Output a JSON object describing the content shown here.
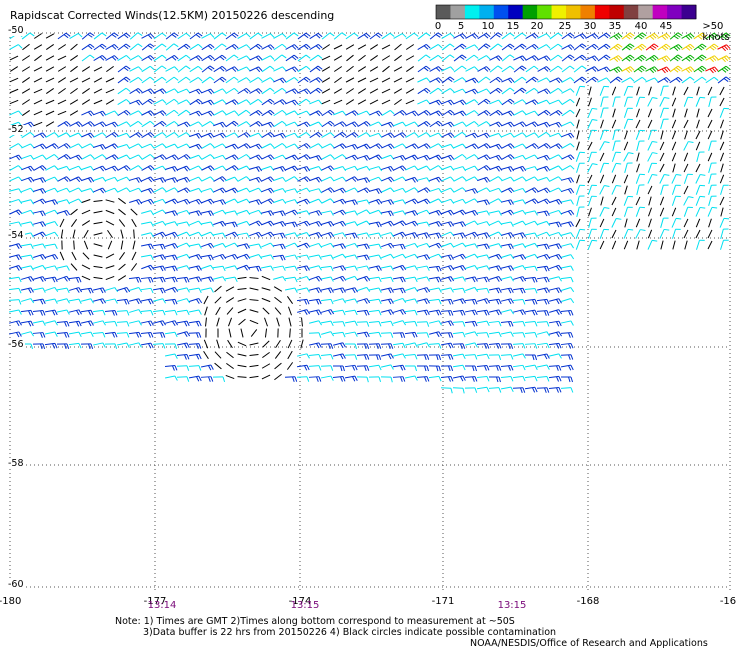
{
  "title": "Rapidscat Corrected Winds(12.5KM) 20150226 descending",
  "legend": {
    "swatches": [
      "#5a5a5a",
      "#a0a0a0",
      "#00f0f0",
      "#00b0f0",
      "#0050f0",
      "#0000c0",
      "#00a000",
      "#60e000",
      "#f0f000",
      "#f0c000",
      "#f08000",
      "#f00000",
      "#c00000",
      "#804040",
      "#b0a0a0",
      "#c000c0",
      "#8000c0",
      "#3c0090"
    ],
    "labels": [
      "0",
      "5",
      "10",
      "15",
      "20",
      "25",
      "30",
      "35",
      "40",
      "45",
      ">50 knots"
    ]
  },
  "lat_labels": [
    "-50",
    "-52",
    "-54",
    "-56",
    "-58",
    "-60"
  ],
  "lon_labels": [
    "-180",
    "-177",
    "-174",
    "-171",
    "-168",
    "-16"
  ],
  "time_labels": [
    "13:14",
    "13:15",
    "13:15"
  ],
  "notes": [
    "Note: 1) Times are GMT 2)Times along bottom correspond to measurement at ~50S",
    "3)Data buffer is 22 hrs from 20150226 4) Black circles indicate possible contamination",
    "NOAA/NESDIS/Office of Research and Applications"
  ],
  "colors": {
    "calm": "#000000",
    "light": "#00e0f0",
    "moderate": "#0030d0",
    "strong": "#00b000",
    "gale": "#f0d000",
    "storm": "#f00000"
  }
}
